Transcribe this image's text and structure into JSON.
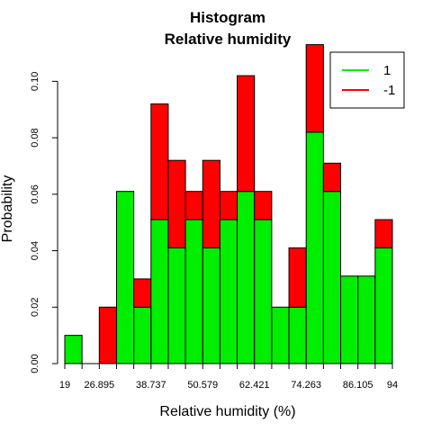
{
  "chart_data": {
    "type": "bar",
    "stacked": true,
    "title": "Histogram",
    "subtitle": "Relative humidity",
    "xlabel": "Relative humidity (%)",
    "ylabel": "Probability",
    "xlim": [
      19,
      94
    ],
    "ylim": [
      0,
      0.11
    ],
    "x_ticks": [
      19,
      26.895,
      38.737,
      50.579,
      62.421,
      74.263,
      86.105,
      94
    ],
    "y_ticks": [
      0.0,
      0.02,
      0.04,
      0.06,
      0.08,
      0.1
    ],
    "y_tick_labels": [
      "0.00",
      "0.02",
      "0.04",
      "0.06",
      "0.08",
      "0.10"
    ],
    "bin_width": 3.947,
    "series": [
      {
        "name": "1",
        "color": "#00ee00",
        "values": [
          0.01,
          0,
          0,
          0.061,
          0.02,
          0.051,
          0.041,
          0.051,
          0.041,
          0.051,
          0.061,
          0.051,
          0.02,
          0.02,
          0.082,
          0.061,
          0.031,
          0.031,
          0.041
        ]
      },
      {
        "name": "-1",
        "color": "#ff0000",
        "values": [
          0,
          0,
          0.02,
          0,
          0.01,
          0.041,
          0.031,
          0.01,
          0.031,
          0.01,
          0.041,
          0.01,
          0,
          0.021,
          0.031,
          0.01,
          0,
          0,
          0.01
        ]
      }
    ],
    "legend": {
      "placement": "top-right",
      "entries": [
        {
          "label": "1",
          "color": "#00ee00"
        },
        {
          "label": "-1",
          "color": "#ff0000"
        }
      ]
    },
    "grid": false
  }
}
